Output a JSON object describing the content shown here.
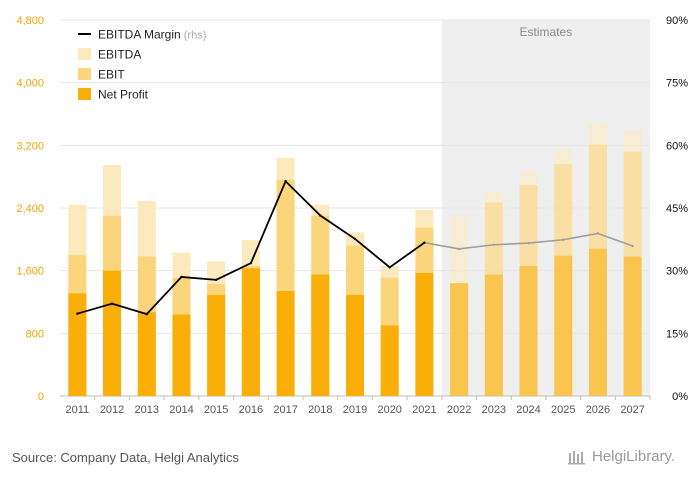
{
  "chart_data": {
    "type": "bar",
    "stacked_overlay": true,
    "categories": [
      "2011",
      "2012",
      "2013",
      "2014",
      "2015",
      "2016",
      "2017",
      "2018",
      "2019",
      "2020",
      "2021",
      "2022",
      "2023",
      "2024",
      "2025",
      "2026",
      "2027"
    ],
    "estimates_from": "2022",
    "estimates_label": "Estimates",
    "series": [
      {
        "name": "EBITDA",
        "axis": "left",
        "color": "#FDE9BE",
        "values": [
          2440,
          2950,
          2490,
          1830,
          1720,
          1990,
          3040,
          2440,
          2090,
          1660,
          2380,
          2290,
          2610,
          2860,
          3150,
          3480,
          3390
        ]
      },
      {
        "name": "EBIT",
        "axis": "left",
        "color": "#FBD57B",
        "values": [
          1800,
          2300,
          1780,
          1510,
          1430,
          1660,
          2760,
          2300,
          1920,
          1510,
          2150,
          1440,
          2470,
          2690,
          2960,
          3210,
          3120
        ]
      },
      {
        "name": "Net Profit",
        "axis": "left",
        "color": "#F9AE08",
        "values": [
          1310,
          1600,
          1070,
          1040,
          1290,
          1630,
          1340,
          1550,
          1290,
          900,
          1570,
          1440,
          1550,
          1660,
          1790,
          1880,
          1780
        ]
      },
      {
        "name": "EBITDA Margin",
        "axis": "right",
        "color": "#000000",
        "estimate_color": "#9E9E9E",
        "values": [
          19.7,
          22.1,
          19.6,
          28.5,
          27.8,
          31.8,
          51.4,
          43.2,
          37.6,
          30.8,
          36.7,
          35.2,
          36.2,
          36.6,
          37.4,
          38.9,
          35.9
        ]
      }
    ],
    "left_axis": {
      "ylim": [
        0,
        4800
      ],
      "ticks": [
        "0",
        "800",
        "1,600",
        "2,400",
        "3,200",
        "4,000",
        "4,800"
      ]
    },
    "right_axis": {
      "ylim": [
        0,
        90
      ],
      "ticks": [
        "0%",
        "15%",
        "30%",
        "45%",
        "60%",
        "75%",
        "90%"
      ]
    },
    "legend": [
      {
        "label": "EBITDA Margin",
        "suffix": "(rhs)",
        "swatch": "line"
      },
      {
        "label": "EBITDA",
        "suffix": "",
        "swatch": "box"
      },
      {
        "label": "EBIT",
        "suffix": "",
        "swatch": "box"
      },
      {
        "label": "Net Profit",
        "suffix": "",
        "swatch": "box"
      }
    ],
    "colors": {
      "left_tick": "#F4A300",
      "right_tick": "#111111",
      "x_tick": "#555555",
      "estimates_bg": "#EFEFEF",
      "estimates_text": "#8a8a8a",
      "grid": "#E6E6E6"
    }
  },
  "footer": {
    "source": "Source: Company Data, Helgi Analytics",
    "logo": "HelgiLibrary."
  }
}
